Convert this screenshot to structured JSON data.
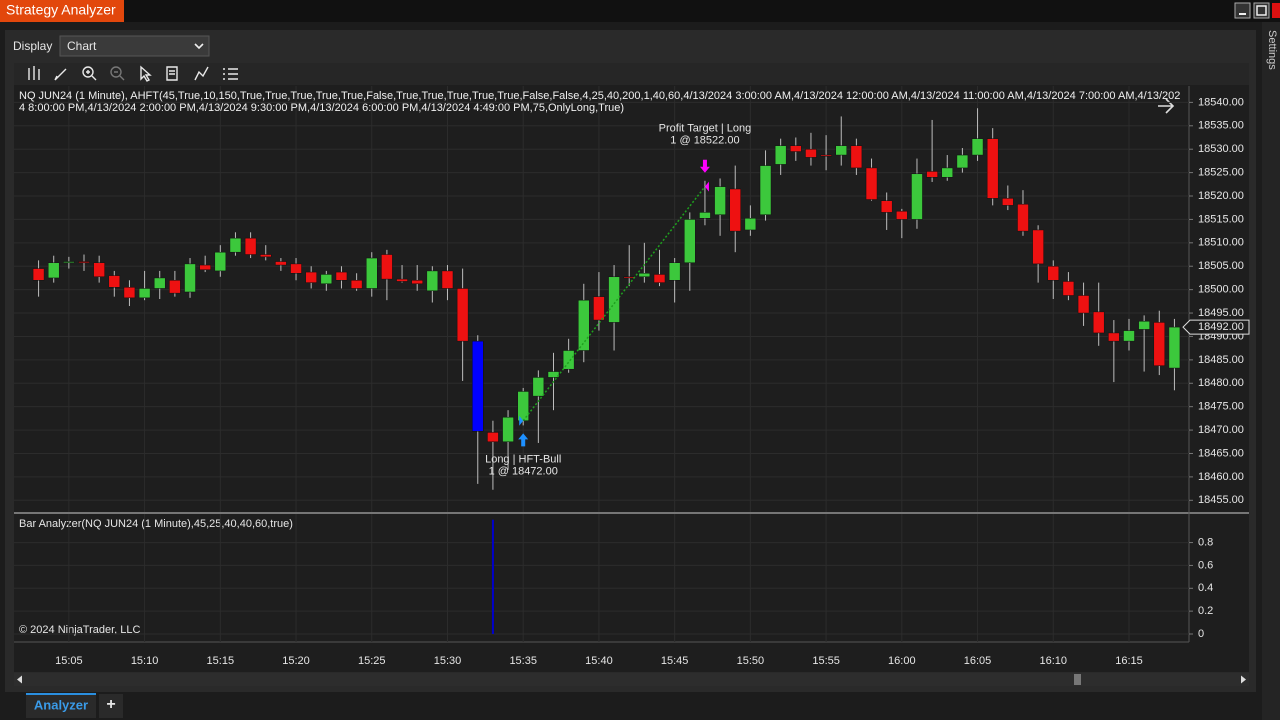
{
  "window": {
    "title": "Strategy Analyzer"
  },
  "display": {
    "label": "Display",
    "value": "Chart"
  },
  "side_tab": "Settings",
  "bottom_tabs": {
    "active": "Analyzer",
    "add": "+"
  },
  "copyright": "© 2024 NinjaTrader, LLC",
  "chart_data": [
    {
      "type": "candlestick",
      "title": "NQ JUN24 (1 Minute), AHFT(45,True,10,150,True,True,True,True,True,False,True,True,True,True,True,False,False,4,25,40,200,1,40,60,4/13/2024 3:00:00 AM,4/13/2024 12:00:00 AM,4/13/2024 11:00:00 AM,4/13/2024 7:00:00 AM,4/13/2024 8:00:00 PM,4/13/2024 2:00:00 PM,4/13/2024 9:30:00 PM,4/13/2024 6:00:00 PM,4/13/2024 4:49:00 PM,75,OnlyLong,True)",
      "categories": [
        null,
        null,
        "15:05",
        null,
        null,
        null,
        null,
        "15:10",
        null,
        null,
        null,
        null,
        "15:15",
        null,
        null,
        null,
        null,
        "15:20",
        null,
        null,
        null,
        null,
        "15:25",
        null,
        null,
        null,
        null,
        "15:30",
        null,
        null,
        null,
        null,
        "15:35",
        null,
        null,
        null,
        null,
        "15:40",
        null,
        null,
        null,
        null,
        "15:45",
        null,
        null,
        null,
        null,
        "15:50",
        null,
        null,
        null,
        null,
        "15:55",
        null,
        null,
        null,
        null,
        "16:00",
        null,
        null,
        null,
        null,
        "16:05",
        null,
        null,
        null,
        null,
        "16:10",
        null,
        null,
        null,
        null,
        "16:15",
        null,
        null,
        null
      ],
      "open": [
        18504.5,
        18502.5,
        18505.75,
        18506,
        18505.75,
        18503,
        18500.5,
        18498.25,
        18500.25,
        18502,
        18499.5,
        18505.25,
        18504,
        18508,
        18511,
        18507.5,
        18506,
        18505.5,
        18503.75,
        18501.25,
        18503.75,
        18502,
        18500.25,
        18507.5,
        18502.25,
        18502,
        18499.75,
        18504,
        18500.25,
        18489,
        18469.5,
        18467.5,
        18472,
        18477.25,
        18481.25,
        18483,
        18487,
        18498.5,
        18493,
        18502.75,
        18502.75,
        18503.25,
        18502,
        18505.75,
        18515.25,
        18516,
        18521.5,
        18512.75,
        18516,
        18526.75,
        18530.75,
        18530,
        18528.75,
        18528.75,
        18530.75,
        18526,
        18519,
        18516.75,
        18515,
        18525.25,
        18524,
        18526,
        18528.75,
        18532.25,
        18519.5,
        18518.25,
        18512.75,
        18505,
        18501.75,
        18498.75,
        18495.25,
        18490.75,
        18489,
        18491.5,
        18493,
        18483.25
      ],
      "high": [
        18506.25,
        18507.25,
        18507,
        18507.5,
        18507.25,
        18504,
        18502,
        18504,
        18504,
        18504,
        18506.75,
        18507.25,
        18509.5,
        18512.25,
        18512.25,
        18509.5,
        18506.75,
        18506.75,
        18505,
        18504,
        18505,
        18503.5,
        18508,
        18508.5,
        18505.25,
        18505.25,
        18505,
        18505.25,
        18504.5,
        18490.25,
        18472,
        18474.25,
        18479,
        18482.75,
        18486.5,
        18489.5,
        18501.25,
        18503.75,
        18505.25,
        18509.5,
        18510,
        18508.5,
        18506.75,
        18516.5,
        18523.25,
        18523.75,
        18526.5,
        18518,
        18529.75,
        18532.25,
        18532.5,
        18533.5,
        18533,
        18537,
        18532.25,
        18528,
        18520.75,
        18517.25,
        18528,
        18536.25,
        18528.75,
        18530.25,
        18538.75,
        18534.5,
        18522.25,
        18521.25,
        18513.75,
        18506.25,
        18503.75,
        18501.5,
        18501.5,
        18493.5,
        18493.75,
        18494.5,
        18495.5,
        18493.75
      ],
      "low": [
        18498.5,
        18501.5,
        18504.5,
        18504,
        18501.5,
        18498.5,
        18496.5,
        18497.75,
        18498,
        18498.5,
        18498.25,
        18503.75,
        18502.75,
        18507.25,
        18506.75,
        18506.25,
        18504,
        18502,
        18500.25,
        18499.75,
        18500.25,
        18499.75,
        18498.5,
        18497.75,
        18501.5,
        18499.75,
        18497.25,
        18497.75,
        18480.5,
        18458.5,
        18457.25,
        18461.5,
        18471,
        18467.25,
        18474.25,
        18482.25,
        18484.5,
        18491.25,
        18487,
        18500.75,
        18501.5,
        18500.75,
        18497.25,
        18499.75,
        18513.75,
        18511.5,
        18508,
        18511.5,
        18514.75,
        18524.5,
        18527.5,
        18526.5,
        18525.5,
        18526.5,
        18524.5,
        18519,
        18512.75,
        18511,
        18513,
        18523,
        18523.25,
        18525,
        18527.5,
        18518,
        18517,
        18511.5,
        18501.5,
        18498,
        18497.75,
        18492.25,
        18488,
        18480.25,
        18487,
        18482.5,
        18481.75,
        18478.5
      ],
      "close": [
        18502,
        18505.75,
        18506,
        18505.75,
        18502.75,
        18500.5,
        18498.25,
        18500.25,
        18502.5,
        18499.25,
        18505.5,
        18504.25,
        18508,
        18511,
        18507.5,
        18507,
        18505.25,
        18503.5,
        18501.5,
        18503.25,
        18502,
        18500.25,
        18506.75,
        18502.25,
        18501.75,
        18501.25,
        18504,
        18500.25,
        18489,
        18469.75,
        18467.5,
        18472.75,
        18478.25,
        18481.25,
        18482.5,
        18487,
        18497.75,
        18493.5,
        18502.75,
        18502.5,
        18503.5,
        18501.5,
        18505.75,
        18515,
        18516.5,
        18522,
        18512.5,
        18515.25,
        18526.5,
        18530.75,
        18529.5,
        18528.25,
        18528.5,
        18530.75,
        18526,
        18519.25,
        18516.5,
        18515,
        18524.75,
        18524,
        18526,
        18528.75,
        18532.25,
        18519.5,
        18518,
        18512.5,
        18505.5,
        18502,
        18498.75,
        18495,
        18490.75,
        18489,
        18491.25,
        18493.25,
        18483.75,
        18492
      ],
      "up_color": "#3cc83c",
      "down_color": "#ee1111",
      "wick_color": "#bdbdbd",
      "highlight": {
        "index": 29,
        "color": "#0000ff"
      },
      "ylim": [
        18452.5,
        18543.5
      ],
      "yticks": [
        {
          "value": 18455,
          "label": "18455.00"
        },
        {
          "value": 18460,
          "label": "18460.00"
        },
        {
          "value": 18465,
          "label": "18465.00"
        },
        {
          "value": 18470,
          "label": "18470.00"
        },
        {
          "value": 18475,
          "label": "18475.00"
        },
        {
          "value": 18480,
          "label": "18480.00"
        },
        {
          "value": 18485,
          "label": "18485.00"
        },
        {
          "value": 18490,
          "label": "18490.00"
        },
        {
          "value": 18495,
          "label": "18495.00"
        },
        {
          "value": 18500,
          "label": "18500.00"
        },
        {
          "value": 18505,
          "label": "18505.00"
        },
        {
          "value": 18510,
          "label": "18510.00"
        },
        {
          "value": 18515,
          "label": "18515.00"
        },
        {
          "value": 18520,
          "label": "18520.00"
        },
        {
          "value": 18525,
          "label": "18525.00"
        },
        {
          "value": 18530,
          "label": "18530.00"
        },
        {
          "value": 18535,
          "label": "18535.00"
        },
        {
          "value": 18540,
          "label": "18540.00"
        }
      ],
      "last_price": {
        "value": 18492,
        "label": "18492.00"
      },
      "grid": true,
      "trades": [
        {
          "entry_index": 32,
          "entry_price": 18472,
          "entry_text": "Long | HFT-Bull",
          "entry_fill": "1 @ 18472.00",
          "entry_color": "#1e90ff",
          "exit_index": 44,
          "exit_price": 18522,
          "exit_text": "Profit Target | Long",
          "exit_fill": "1 @ 18522.00",
          "exit_color": "#ff00ff",
          "line_color": "#1fa01f"
        }
      ]
    },
    {
      "type": "bar",
      "title": "Bar Analyzer(NQ JUN24 (1 Minute),45,25,40,40,60,true)",
      "values": [
        0,
        0,
        0,
        0,
        0,
        0,
        0,
        0,
        0,
        0,
        0,
        0,
        0,
        0,
        0,
        0,
        0,
        0,
        0,
        0,
        0,
        0,
        0,
        0,
        0,
        0,
        0,
        0,
        0,
        0,
        1,
        0,
        0,
        0,
        0,
        0,
        0,
        0,
        0,
        0,
        0,
        0,
        0,
        0,
        0,
        0,
        0,
        0,
        0,
        0,
        0,
        0,
        0,
        0,
        0,
        0,
        0,
        0,
        0,
        0,
        0,
        0,
        0,
        0,
        0,
        0,
        0,
        0,
        0,
        0,
        0,
        0,
        0,
        0,
        0,
        0
      ],
      "color": "#0000cc",
      "ylim": [
        0,
        1.05
      ],
      "yticks": [
        0,
        0.2,
        0.4,
        0.6,
        0.8
      ],
      "grid": true
    }
  ]
}
